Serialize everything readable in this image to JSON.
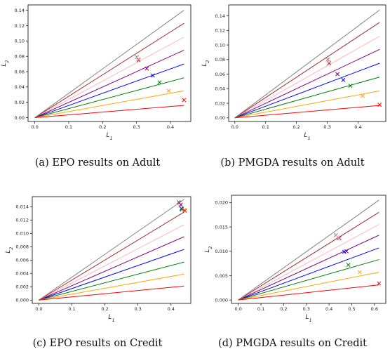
{
  "figure": {
    "panels": [
      {
        "caption": "(a) EPO results on Adult"
      },
      {
        "caption": "(b) PMGDA results on Adult"
      },
      {
        "caption": "(c) EPO results on Credit"
      },
      {
        "caption": "(d) PMGDA results on Credit"
      }
    ]
  },
  "colors": [
    "#808080",
    "#a52a2a",
    "#ffb6c1",
    "#800080",
    "#0000ff",
    "#008000",
    "#ffa500",
    "#ff0000"
  ],
  "chart_data": [
    {
      "type": "scatter",
      "title": "",
      "xlabel": "L_1",
      "ylabel": "L_2",
      "xlim": [
        -0.02,
        0.46
      ],
      "ylim": [
        -0.005,
        0.147
      ],
      "xticks": [
        "0.0",
        "0.1",
        "0.2",
        "0.3",
        "0.4"
      ],
      "xtick_values": [
        0.0,
        0.1,
        0.2,
        0.3,
        0.4
      ],
      "yticks": [
        "0.00",
        "0.02",
        "0.04",
        "0.06",
        "0.08",
        "0.10",
        "0.12",
        "0.14"
      ],
      "ytick_values": [
        0.0,
        0.02,
        0.04,
        0.06,
        0.08,
        0.1,
        0.12,
        0.14
      ],
      "rays": [
        {
          "end": [
            0.44,
            0.14
          ]
        },
        {
          "end": [
            0.44,
            0.123
          ]
        },
        {
          "end": [
            0.44,
            0.105
          ]
        },
        {
          "end": [
            0.44,
            0.088
          ]
        },
        {
          "end": [
            0.44,
            0.07
          ]
        },
        {
          "end": [
            0.44,
            0.052
          ]
        },
        {
          "end": [
            0.44,
            0.035
          ]
        },
        {
          "end": [
            0.44,
            0.016
          ]
        }
      ],
      "points": [
        {
          "x": 0.301,
          "y": 0.079
        },
        {
          "x": 0.306,
          "y": 0.075
        },
        {
          "x": 0.306,
          "y": 0.077
        },
        {
          "x": 0.33,
          "y": 0.064
        },
        {
          "x": 0.348,
          "y": 0.055
        },
        {
          "x": 0.368,
          "y": 0.046
        },
        {
          "x": 0.395,
          "y": 0.035
        },
        {
          "x": 0.44,
          "y": 0.023
        }
      ]
    },
    {
      "type": "scatter",
      "title": "",
      "xlabel": "L_1",
      "ylabel": "L_2",
      "xlim": [
        -0.02,
        0.49
      ],
      "ylim": [
        -0.005,
        0.155
      ],
      "xticks": [
        "0.0",
        "0.1",
        "0.2",
        "0.3",
        "0.4"
      ],
      "xtick_values": [
        0.0,
        0.1,
        0.2,
        0.3,
        0.4
      ],
      "yticks": [
        "0.00",
        "0.02",
        "0.04",
        "0.06",
        "0.08",
        "0.10",
        "0.12",
        "0.14"
      ],
      "ytick_values": [
        0.0,
        0.02,
        0.04,
        0.06,
        0.08,
        0.1,
        0.12,
        0.14
      ],
      "rays": [
        {
          "end": [
            0.47,
            0.148
          ]
        },
        {
          "end": [
            0.47,
            0.131
          ]
        },
        {
          "end": [
            0.47,
            0.112
          ]
        },
        {
          "end": [
            0.47,
            0.094
          ]
        },
        {
          "end": [
            0.47,
            0.075
          ]
        },
        {
          "end": [
            0.47,
            0.056
          ]
        },
        {
          "end": [
            0.47,
            0.037
          ]
        },
        {
          "end": [
            0.47,
            0.017
          ]
        }
      ],
      "points": [
        {
          "x": 0.302,
          "y": 0.08
        },
        {
          "x": 0.306,
          "y": 0.075
        },
        {
          "x": 0.306,
          "y": 0.077
        },
        {
          "x": 0.333,
          "y": 0.06
        },
        {
          "x": 0.352,
          "y": 0.052
        },
        {
          "x": 0.375,
          "y": 0.044
        },
        {
          "x": 0.415,
          "y": 0.03
        },
        {
          "x": 0.47,
          "y": 0.018
        }
      ]
    },
    {
      "type": "scatter",
      "title": "",
      "xlabel": "L_1",
      "ylabel": "L_2",
      "xlim": [
        -0.02,
        0.46
      ],
      "ylim": [
        -0.0005,
        0.0155
      ],
      "xticks": [
        "0.0",
        "0.1",
        "0.2",
        "0.3",
        "0.4"
      ],
      "xtick_values": [
        0.0,
        0.1,
        0.2,
        0.3,
        0.4
      ],
      "yticks": [
        "0.000",
        "0.002",
        "0.004",
        "0.006",
        "0.008",
        "0.010",
        "0.012",
        "0.014"
      ],
      "ytick_values": [
        0.0,
        0.002,
        0.004,
        0.006,
        0.008,
        0.01,
        0.012,
        0.014
      ],
      "rays": [
        {
          "end": [
            0.44,
            0.0151
          ]
        },
        {
          "end": [
            0.44,
            0.0132
          ]
        },
        {
          "end": [
            0.44,
            0.0113
          ]
        },
        {
          "end": [
            0.44,
            0.0095
          ]
        },
        {
          "end": [
            0.44,
            0.0076
          ]
        },
        {
          "end": [
            0.44,
            0.0057
          ]
        },
        {
          "end": [
            0.44,
            0.0039
          ]
        },
        {
          "end": [
            0.44,
            0.0021
          ]
        }
      ],
      "points": [
        {
          "x": 0.423,
          "y": 0.0147
        },
        {
          "x": 0.425,
          "y": 0.0146
        },
        {
          "x": 0.428,
          "y": 0.0141
        },
        {
          "x": 0.43,
          "y": 0.0143
        },
        {
          "x": 0.432,
          "y": 0.0137
        },
        {
          "x": 0.433,
          "y": 0.0136
        },
        {
          "x": 0.44,
          "y": 0.0135
        },
        {
          "x": 0.442,
          "y": 0.0134
        }
      ]
    },
    {
      "type": "scatter",
      "title": "",
      "xlabel": "L_1",
      "ylabel": "L_2",
      "xlim": [
        -0.03,
        0.65
      ],
      "ylim": [
        -0.0007,
        0.0215
      ],
      "xticks": [
        "0.0",
        "0.1",
        "0.2",
        "0.3",
        "0.4",
        "0.5",
        "0.6"
      ],
      "xtick_values": [
        0.0,
        0.1,
        0.2,
        0.3,
        0.4,
        0.5,
        0.6
      ],
      "yticks": [
        "0.000",
        "0.005",
        "0.010",
        "0.015",
        "0.020"
      ],
      "ytick_values": [
        0.0,
        0.005,
        0.01,
        0.015,
        0.02
      ],
      "rays": [
        {
          "end": [
            0.62,
            0.0205
          ]
        },
        {
          "end": [
            0.62,
            0.018
          ]
        },
        {
          "end": [
            0.62,
            0.0155
          ]
        },
        {
          "end": [
            0.62,
            0.0133
          ]
        },
        {
          "end": [
            0.62,
            0.0107
          ]
        },
        {
          "end": [
            0.62,
            0.0083
          ]
        },
        {
          "end": [
            0.62,
            0.0057
          ]
        },
        {
          "end": [
            0.62,
            0.0031
          ]
        }
      ],
      "points": [
        {
          "x": 0.43,
          "y": 0.0133
        },
        {
          "x": 0.445,
          "y": 0.0127
        },
        {
          "x": 0.438,
          "y": 0.013
        },
        {
          "x": 0.477,
          "y": 0.01
        },
        {
          "x": 0.467,
          "y": 0.0099
        },
        {
          "x": 0.485,
          "y": 0.0072
        },
        {
          "x": 0.535,
          "y": 0.0057
        },
        {
          "x": 0.62,
          "y": 0.0034
        }
      ]
    }
  ]
}
